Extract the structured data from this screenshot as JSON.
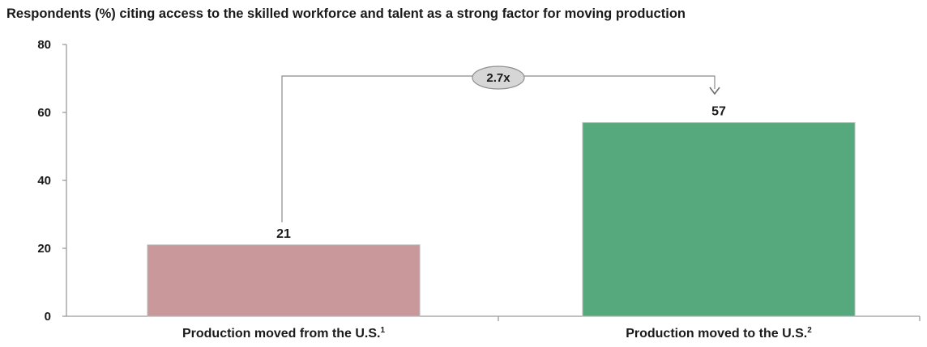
{
  "chart_data": {
    "type": "bar",
    "title": "Respondents (%) citing access to the skilled workforce and talent as a strong factor for moving production",
    "categories": [
      "Production moved from the U.S.",
      "Production moved to the U.S."
    ],
    "category_superscripts": [
      "1",
      "2"
    ],
    "values": [
      21,
      57
    ],
    "data_labels": [
      "21",
      "57"
    ],
    "bar_colors": [
      "#c9989a",
      "#55a97c"
    ],
    "ylim": [
      0,
      80
    ],
    "yticks": [
      0,
      20,
      40,
      60,
      80
    ],
    "xlabel": "",
    "ylabel": "",
    "grid": false,
    "annotation": {
      "text": "2.7x",
      "from_category": 0,
      "to_category": 1
    }
  }
}
